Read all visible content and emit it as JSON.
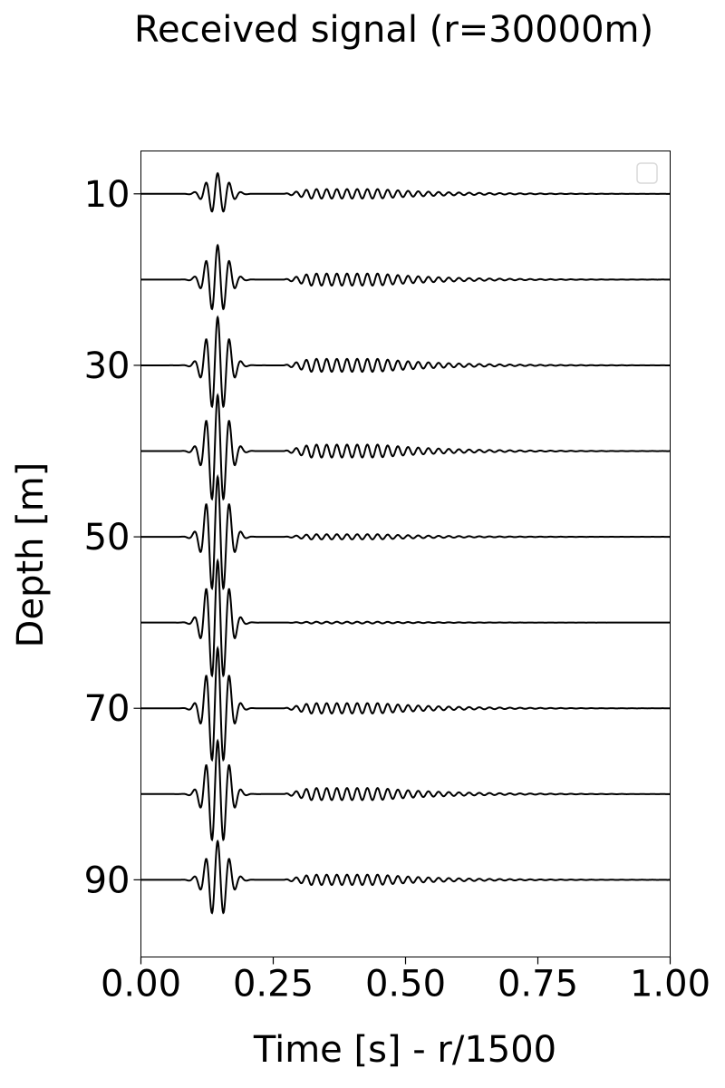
{
  "chart_data": {
    "type": "line",
    "title": "Received signal (r=30000m)",
    "xlabel": "Time [s] - r/1500",
    "ylabel": "Depth [m]",
    "xlim": [
      0.0,
      1.0
    ],
    "ylim": [
      99,
      5
    ],
    "y_inverted": true,
    "x_ticks": [
      "0.00",
      "0.25",
      "0.50",
      "0.75",
      "1.00"
    ],
    "y_ticks": [
      "10",
      "30",
      "50",
      "70",
      "90"
    ],
    "grid": false,
    "legend": {
      "placement": "top-right",
      "entries": []
    },
    "trace_color": "#000000",
    "traces": [
      {
        "depth": 10,
        "direct_arrival_amplitude": 2.4,
        "late_arrival_amplitude": 0.55
      },
      {
        "depth": 20,
        "direct_arrival_amplitude": 4.0,
        "late_arrival_amplitude": 0.7
      },
      {
        "depth": 30,
        "direct_arrival_amplitude": 5.6,
        "late_arrival_amplitude": 0.75
      },
      {
        "depth": 40,
        "direct_arrival_amplitude": 6.5,
        "late_arrival_amplitude": 0.75
      },
      {
        "depth": 50,
        "direct_arrival_amplitude": 7.0,
        "late_arrival_amplitude": 0.3
      },
      {
        "depth": 60,
        "direct_arrival_amplitude": 7.2,
        "late_arrival_amplitude": 0.1
      },
      {
        "depth": 70,
        "direct_arrival_amplitude": 7.0,
        "late_arrival_amplitude": 0.6
      },
      {
        "depth": 80,
        "direct_arrival_amplitude": 6.2,
        "late_arrival_amplitude": 0.7
      },
      {
        "depth": 90,
        "direct_arrival_amplitude": 4.5,
        "late_arrival_amplitude": 0.6
      }
    ]
  }
}
